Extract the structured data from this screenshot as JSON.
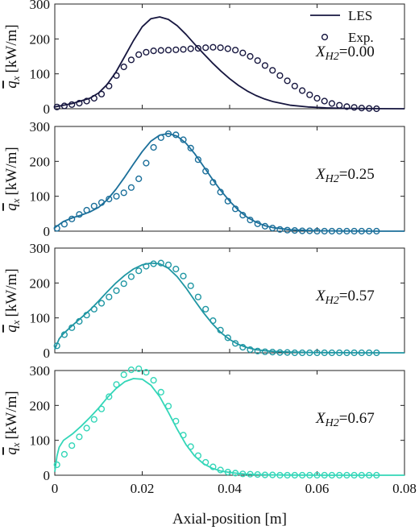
{
  "chart_data": [
    {
      "type": "line",
      "panel_label": "X",
      "panel_label_sub": "H2",
      "panel_value": "=0.00",
      "color": "#16163f",
      "ylabel_main": "q",
      "ylabel_sub": "x",
      "ylabel_unit": "[kW/m]",
      "ylim": [
        0,
        300
      ],
      "yticks": [
        "0",
        "100",
        "200",
        "300"
      ],
      "xlim": [
        0,
        0.08
      ],
      "legend": {
        "placement": "top-right",
        "les": "LES",
        "exp": "Exp."
      },
      "series": [
        {
          "name": "LES",
          "style": "line",
          "x": [
            0,
            0.004,
            0.008,
            0.01,
            0.012,
            0.014,
            0.016,
            0.018,
            0.02,
            0.022,
            0.024,
            0.026,
            0.028,
            0.03,
            0.032,
            0.034,
            0.036,
            0.038,
            0.04,
            0.042,
            0.044,
            0.046,
            0.048,
            0.05,
            0.054,
            0.058,
            0.062,
            0.066,
            0.07,
            0.074,
            0.08
          ],
          "y": [
            5,
            15,
            30,
            45,
            70,
            105,
            150,
            195,
            235,
            258,
            263,
            256,
            238,
            213,
            185,
            158,
            132,
            108,
            86,
            67,
            51,
            38,
            28,
            20,
            10,
            5,
            2.5,
            1.2,
            0.6,
            0.3,
            0
          ]
        },
        {
          "name": "Exp.",
          "style": "markers",
          "x": [
            0.0005,
            0.0022,
            0.0039,
            0.0056,
            0.0073,
            0.009,
            0.0107,
            0.0124,
            0.0141,
            0.0158,
            0.0175,
            0.0192,
            0.0209,
            0.0226,
            0.0243,
            0.026,
            0.0277,
            0.0294,
            0.0311,
            0.0328,
            0.0345,
            0.0362,
            0.0379,
            0.0396,
            0.0413,
            0.043,
            0.0447,
            0.0464,
            0.0481,
            0.0498,
            0.0515,
            0.0532,
            0.0549,
            0.0566,
            0.0583,
            0.06,
            0.0617,
            0.0634,
            0.0651,
            0.0668,
            0.0685,
            0.0702,
            0.0719,
            0.0736
          ],
          "y": [
            5,
            8,
            12,
            16,
            22,
            30,
            42,
            65,
            95,
            120,
            140,
            155,
            162,
            166,
            167,
            168,
            169,
            170,
            172,
            173,
            175,
            176,
            175,
            172,
            168,
            160,
            150,
            138,
            124,
            110,
            95,
            80,
            65,
            52,
            40,
            30,
            22,
            15,
            10,
            6,
            4,
            2,
            1,
            0
          ]
        }
      ]
    },
    {
      "type": "line",
      "panel_label": "X",
      "panel_label_sub": "H2",
      "panel_value": "=0.25",
      "color": "#1b6f9a",
      "ylabel_main": "q",
      "ylabel_sub": "x",
      "ylabel_unit": "[kW/m]",
      "ylim": [
        0,
        300
      ],
      "yticks": [
        "0",
        "100",
        "200",
        "300"
      ],
      "xlim": [
        0,
        0.08
      ],
      "series": [
        {
          "name": "LES",
          "style": "line",
          "x": [
            0,
            0.002,
            0.004,
            0.006,
            0.008,
            0.01,
            0.012,
            0.014,
            0.016,
            0.018,
            0.02,
            0.022,
            0.024,
            0.026,
            0.028,
            0.03,
            0.032,
            0.034,
            0.036,
            0.038,
            0.04,
            0.042,
            0.044,
            0.046,
            0.048,
            0.05,
            0.054,
            0.058,
            0.062,
            0.066,
            0.07,
            0.074,
            0.08
          ],
          "y": [
            10,
            28,
            38,
            46,
            55,
            68,
            90,
            120,
            155,
            192,
            228,
            258,
            275,
            280,
            272,
            252,
            222,
            186,
            150,
            116,
            86,
            60,
            40,
            26,
            16,
            10,
            4,
            2,
            1,
            0.5,
            0.2,
            0.1,
            0
          ]
        },
        {
          "name": "Exp.",
          "style": "markers",
          "x": [
            0.0005,
            0.0022,
            0.0039,
            0.0056,
            0.0073,
            0.009,
            0.0107,
            0.0124,
            0.0141,
            0.0158,
            0.0175,
            0.0192,
            0.0209,
            0.0226,
            0.0243,
            0.026,
            0.0277,
            0.0294,
            0.0311,
            0.0328,
            0.0345,
            0.0362,
            0.0379,
            0.0396,
            0.0413,
            0.043,
            0.0447,
            0.0464,
            0.0481,
            0.0498,
            0.0515,
            0.0532,
            0.0549,
            0.0566,
            0.0583,
            0.06,
            0.0617,
            0.0634,
            0.0651,
            0.0668,
            0.0685,
            0.0702,
            0.0719,
            0.0736
          ],
          "y": [
            8,
            20,
            35,
            48,
            60,
            72,
            82,
            92,
            100,
            110,
            125,
            150,
            195,
            240,
            268,
            279,
            276,
            262,
            238,
            205,
            172,
            140,
            112,
            86,
            64,
            46,
            32,
            21,
            14,
            9,
            5,
            3,
            2,
            1,
            1,
            0,
            0,
            0,
            0,
            0,
            0,
            0,
            0,
            0
          ]
        }
      ]
    },
    {
      "type": "line",
      "panel_label": "X",
      "panel_label_sub": "H2",
      "panel_value": "=0.57",
      "color": "#1f96a3",
      "ylabel_main": "q",
      "ylabel_sub": "x",
      "ylabel_unit": "[kW/m]",
      "ylim": [
        0,
        300
      ],
      "yticks": [
        "0",
        "100",
        "200",
        "300"
      ],
      "xlim": [
        0,
        0.08
      ],
      "series": [
        {
          "name": "LES",
          "style": "line",
          "x": [
            0,
            0.001,
            0.002,
            0.004,
            0.006,
            0.008,
            0.01,
            0.012,
            0.014,
            0.016,
            0.018,
            0.02,
            0.022,
            0.024,
            0.026,
            0.028,
            0.03,
            0.032,
            0.034,
            0.036,
            0.038,
            0.04,
            0.042,
            0.044,
            0.046,
            0.048,
            0.05,
            0.054,
            0.058,
            0.062,
            0.066,
            0.07,
            0.074,
            0.08
          ],
          "y": [
            10,
            40,
            55,
            78,
            100,
            122,
            148,
            175,
            200,
            222,
            240,
            252,
            257,
            255,
            242,
            218,
            186,
            150,
            115,
            84,
            58,
            38,
            24,
            15,
            9,
            6,
            4,
            2,
            1,
            0.5,
            0.2,
            0.1,
            0,
            0
          ]
        },
        {
          "name": "Exp.",
          "style": "markers",
          "x": [
            0.0005,
            0.0022,
            0.0039,
            0.0056,
            0.0073,
            0.009,
            0.0107,
            0.0124,
            0.0141,
            0.0158,
            0.0175,
            0.0192,
            0.0209,
            0.0226,
            0.0243,
            0.026,
            0.0277,
            0.0294,
            0.0311,
            0.0328,
            0.0345,
            0.0362,
            0.0379,
            0.0396,
            0.0413,
            0.043,
            0.0447,
            0.0464,
            0.0481,
            0.0498,
            0.0515,
            0.0532,
            0.0549,
            0.0566,
            0.0583,
            0.06,
            0.0617,
            0.0634,
            0.0651,
            0.0668,
            0.0685,
            0.0702,
            0.0719,
            0.0736
          ],
          "y": [
            20,
            52,
            72,
            90,
            108,
            125,
            142,
            160,
            178,
            198,
            218,
            235,
            248,
            255,
            257,
            252,
            240,
            220,
            192,
            160,
            125,
            92,
            65,
            43,
            27,
            16,
            9,
            5,
            3,
            2,
            1,
            1,
            0,
            0,
            0,
            0,
            0,
            0,
            0,
            0,
            0,
            0,
            0,
            0
          ]
        }
      ]
    },
    {
      "type": "line",
      "panel_label": "X",
      "panel_label_sub": "H2",
      "panel_value": "=0.67",
      "color": "#33d6b8",
      "ylabel_main": "q",
      "ylabel_sub": "x",
      "ylabel_unit": "[kW/m]",
      "ylim": [
        0,
        300
      ],
      "yticks": [
        "0",
        "100",
        "200",
        "300"
      ],
      "xlim": [
        0,
        0.08
      ],
      "xticks": [
        "0",
        "0.02",
        "0.04",
        "0.06",
        "0.08"
      ],
      "xlabel": "Axial-position [m]",
      "series": [
        {
          "name": "LES",
          "style": "line",
          "x": [
            0,
            0.0005,
            0.001,
            0.002,
            0.004,
            0.006,
            0.008,
            0.01,
            0.012,
            0.014,
            0.016,
            0.018,
            0.02,
            0.022,
            0.024,
            0.026,
            0.028,
            0.03,
            0.032,
            0.034,
            0.036,
            0.038,
            0.04,
            0.042,
            0.044,
            0.046,
            0.05,
            0.054,
            0.058,
            0.062,
            0.066,
            0.07,
            0.074,
            0.08
          ],
          "y": [
            10,
            55,
            80,
            100,
            118,
            140,
            165,
            192,
            222,
            248,
            268,
            277,
            275,
            258,
            225,
            180,
            132,
            88,
            55,
            33,
            20,
            12,
            8,
            5,
            3,
            2,
            1,
            0.5,
            0.2,
            0.1,
            0,
            0,
            0,
            0
          ]
        },
        {
          "name": "Exp.",
          "style": "markers",
          "x": [
            0.0005,
            0.0022,
            0.0039,
            0.0056,
            0.0073,
            0.009,
            0.0107,
            0.0124,
            0.0141,
            0.0158,
            0.0175,
            0.0192,
            0.0209,
            0.0226,
            0.0243,
            0.026,
            0.0277,
            0.0294,
            0.0311,
            0.0328,
            0.0345,
            0.0362,
            0.0379,
            0.0396,
            0.0413,
            0.043,
            0.0447,
            0.0464,
            0.0481,
            0.0498,
            0.0515,
            0.0532,
            0.0549,
            0.0566,
            0.0583,
            0.06,
            0.0617,
            0.0634,
            0.0651,
            0.0668,
            0.0685,
            0.0702,
            0.0719,
            0.0736
          ],
          "y": [
            30,
            60,
            85,
            110,
            135,
            160,
            190,
            225,
            260,
            288,
            302,
            305,
            295,
            272,
            238,
            198,
            155,
            115,
            82,
            56,
            37,
            24,
            15,
            9,
            6,
            4,
            3,
            2,
            1,
            1,
            0,
            0,
            0,
            0,
            0,
            0,
            0,
            0,
            0,
            0,
            0,
            0,
            0,
            0
          ]
        }
      ]
    }
  ]
}
